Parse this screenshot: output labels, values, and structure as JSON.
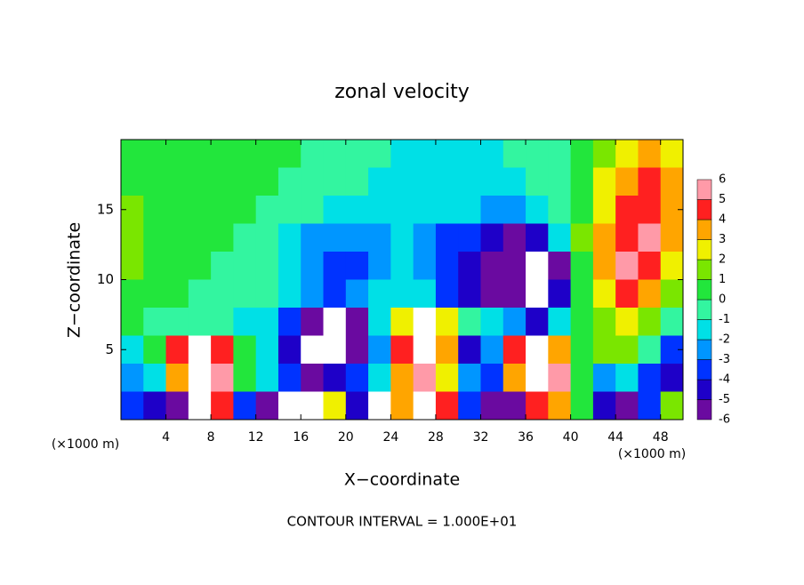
{
  "chart_data": {
    "type": "heatmap",
    "title": "zonal velocity",
    "xlabel": "X−coordinate",
    "ylabel": "Z−coordinate",
    "x_unit": "(×1000 m)",
    "y_unit": "(×1000 m)",
    "footer": "CONTOUR INTERVAL = 1.000E+01",
    "xlim": [
      0,
      50
    ],
    "ylim": [
      0,
      20
    ],
    "xticks": [
      4,
      8,
      12,
      16,
      20,
      24,
      28,
      32,
      36,
      40,
      44,
      48
    ],
    "yticks": [
      5,
      10,
      15
    ],
    "x_edges": [
      0,
      2,
      4,
      6,
      8,
      10,
      12,
      14,
      16,
      18,
      20,
      22,
      24,
      26,
      28,
      30,
      32,
      34,
      36,
      38,
      40,
      42,
      44,
      46,
      48,
      50
    ],
    "y_edges": [
      20,
      18,
      16,
      14,
      12,
      10,
      8,
      6,
      4,
      2,
      0
    ],
    "z": [
      [
        1,
        1,
        1,
        1,
        0.5,
        0.5,
        0.5,
        0.5,
        0,
        0,
        0,
        -0.5,
        -1,
        -1,
        -1,
        -1,
        -1,
        -0.5,
        -0.5,
        0,
        0.5,
        2,
        3,
        4,
        3
      ],
      [
        1,
        1,
        1,
        0.5,
        0.5,
        0.5,
        0.5,
        0,
        0,
        0,
        -0.5,
        -1,
        -1,
        -1,
        -1,
        -1,
        -1,
        -1,
        -0.5,
        0,
        1,
        3,
        4,
        5,
        4
      ],
      [
        1.5,
        1,
        0.5,
        0.5,
        0.5,
        0.5,
        0,
        0,
        -0.5,
        -1,
        -1,
        -1,
        -1,
        -1.5,
        -1.5,
        -1.5,
        -2,
        -2,
        -1.5,
        -0.5,
        0.5,
        3,
        5,
        5,
        4
      ],
      [
        1.5,
        1,
        0.5,
        0.5,
        0.5,
        0,
        -0.5,
        -1,
        -2,
        -2.5,
        -2.5,
        -2,
        -1.5,
        -2,
        -3,
        -3.5,
        -4,
        -5,
        -4,
        -1,
        2,
        4,
        5,
        6,
        4
      ],
      [
        1.5,
        1,
        0.5,
        0.5,
        0,
        0,
        -0.5,
        -1,
        -2,
        -3,
        -3,
        -2,
        -1,
        -2,
        -3.5,
        -4,
        -5,
        -6,
        -8,
        -5,
        1,
        4,
        6,
        5,
        3
      ],
      [
        1,
        0.5,
        0.5,
        0,
        0,
        0,
        -0.5,
        -1,
        -2,
        -3,
        -2.5,
        -1.5,
        -1,
        -1.5,
        -3,
        -4,
        -5,
        -6,
        -7,
        -4,
        1,
        3,
        5,
        4,
        2
      ],
      [
        0.5,
        0,
        -0.5,
        0,
        0,
        -1,
        -1,
        -3,
        -5,
        -7,
        -5,
        -1,
        3,
        7,
        3,
        -0.5,
        -1,
        -2,
        -4,
        -1,
        0.5,
        2,
        3,
        2,
        0
      ],
      [
        -1,
        1,
        5,
        7,
        5,
        1,
        -1,
        -4,
        -7,
        -8,
        -6,
        -2,
        5,
        8,
        4,
        -4,
        -2,
        5,
        8,
        4,
        0.5,
        2,
        2,
        0,
        -3
      ],
      [
        -2,
        -1,
        4,
        8,
        6,
        1,
        -1,
        -3,
        -5,
        -4,
        -3,
        -1,
        4,
        6,
        3,
        -2,
        -3,
        4,
        8,
        6,
        1,
        -2,
        -1,
        -3,
        -4
      ],
      [
        -3,
        -4,
        -6,
        7,
        5,
        -3,
        -5,
        8,
        8,
        3,
        -4,
        -7,
        4,
        8,
        5,
        -3,
        -5,
        -6,
        5,
        4,
        1,
        -4,
        -5,
        -3,
        2
      ]
    ],
    "levels": [
      -6,
      -5,
      -4,
      -3,
      -2,
      -1,
      0,
      1,
      2,
      3,
      4,
      5,
      6
    ],
    "colors": [
      "#6a0aa0",
      "#1e00c8",
      "#0033ff",
      "#0096ff",
      "#00e0e6",
      "#33f5a0",
      "#22e63c",
      "#7ae600",
      "#f0f000",
      "#ffa500",
      "#ff2020",
      "#ff9aa8"
    ],
    "overflow_color": "#ffffff"
  }
}
